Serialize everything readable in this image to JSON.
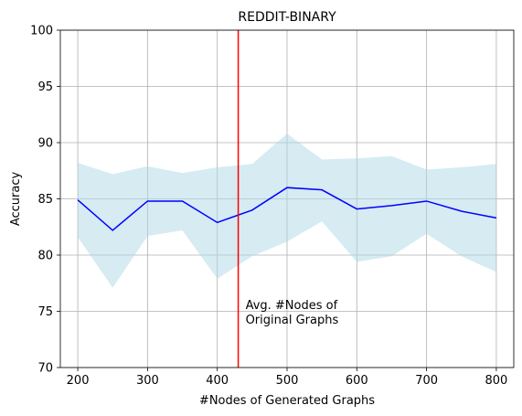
{
  "chart_data": {
    "type": "line",
    "title": "REDDIT-BINARY",
    "xlabel": "#Nodes of Generated Graphs",
    "ylabel": "Accuracy",
    "xlim": [
      175,
      825
    ],
    "ylim": [
      70,
      100
    ],
    "xticks": [
      200,
      300,
      400,
      500,
      600,
      700,
      800
    ],
    "yticks": [
      70,
      75,
      80,
      85,
      90,
      95,
      100
    ],
    "grid": true,
    "x": [
      200,
      250,
      300,
      350,
      400,
      450,
      500,
      550,
      600,
      650,
      700,
      750,
      800
    ],
    "series": [
      {
        "values": [
          84.9,
          82.2,
          84.8,
          84.8,
          82.9,
          84.0,
          86.0,
          85.8,
          84.1,
          84.4,
          84.8,
          83.9,
          83.3
        ],
        "upper": [
          88.2,
          87.2,
          87.9,
          87.3,
          87.8,
          88.1,
          90.8,
          88.5,
          88.6,
          88.8,
          87.6,
          87.8,
          88.1
        ],
        "lower": [
          81.6,
          77.1,
          81.7,
          82.2,
          77.9,
          79.9,
          81.2,
          83.0,
          79.4,
          79.9,
          81.9,
          79.9,
          78.5
        ],
        "color": "#0000ff",
        "band_color": "#add8e6"
      }
    ],
    "reference_line": {
      "x": 430,
      "color": "#ff0000",
      "label_line1": "Avg. #Nodes of",
      "label_line2": "Original Graphs"
    }
  }
}
